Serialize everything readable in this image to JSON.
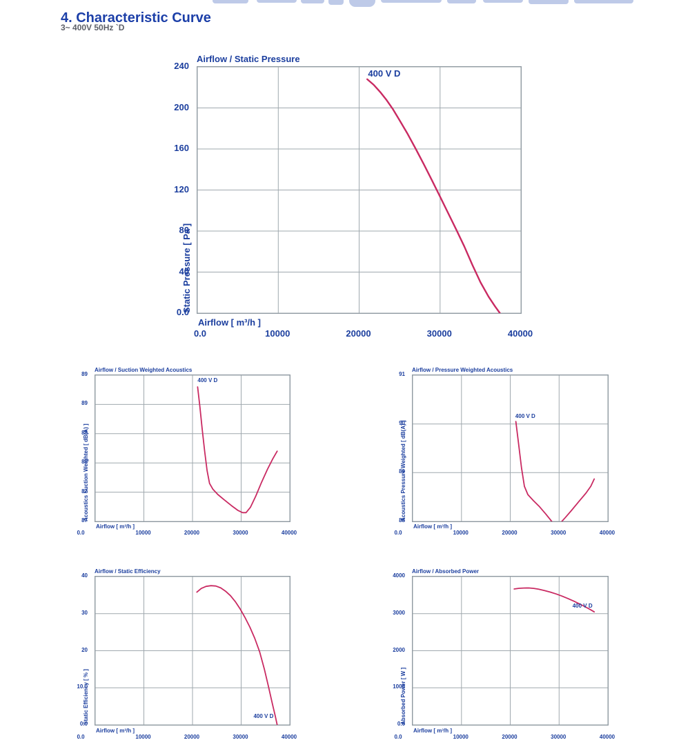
{
  "page": {
    "heading": "4.  Characteristic Curve",
    "subheading": "3~ 400V 50Hz `D"
  },
  "colors": {
    "chart_text_navy": "#1b3e9e",
    "heading_blue": "#1c3fa8",
    "subheading_gray": "#5c5f68",
    "curve_pink": "#c92a62",
    "grid_gray": "#9fa8ae",
    "frame_gray": "#8f99a1",
    "watermark_blue": "#bac7e7"
  },
  "chart_data": [
    {
      "type": "line",
      "title": "Airflow / Static Pressure",
      "xlabel": "Airflow [ m³/h ]",
      "ylabel": "Static Pressure [ Pa ]",
      "xlim": [
        0,
        40000
      ],
      "ylim": [
        0,
        240
      ],
      "grid": true,
      "x_ticks": [
        {
          "v": 0,
          "label": "0.0"
        },
        {
          "v": 10000,
          "label": "10000"
        },
        {
          "v": 20000,
          "label": "20000"
        },
        {
          "v": 30000,
          "label": "30000"
        },
        {
          "v": 40000,
          "label": "40000"
        }
      ],
      "y_ticks": [
        {
          "v": 240,
          "label": "240"
        },
        {
          "v": 200,
          "label": "200"
        },
        {
          "v": 160,
          "label": "160"
        },
        {
          "v": 120,
          "label": "120"
        },
        {
          "v": 80,
          "label": "80"
        },
        {
          "v": 40,
          "label": "40"
        },
        {
          "v": 0,
          "label": "0.0"
        }
      ],
      "series": [
        {
          "name": "400 V D",
          "points": [
            [
              21000,
              228
            ],
            [
              21800,
              222.5
            ],
            [
              22600,
              215.5
            ],
            [
              23400,
              207.5
            ],
            [
              24200,
              198.5
            ],
            [
              25000,
              188
            ],
            [
              26000,
              174.5
            ],
            [
              27000,
              160
            ],
            [
              28000,
              145
            ],
            [
              29000,
              129.5
            ],
            [
              30000,
              113.5
            ],
            [
              31000,
              97.5
            ],
            [
              32000,
              81.5
            ],
            [
              33000,
              65
            ],
            [
              34000,
              47
            ],
            [
              35000,
              30
            ],
            [
              36000,
              16
            ],
            [
              36800,
              6.5
            ],
            [
              37400,
              0
            ]
          ]
        }
      ],
      "series_label_pos": [
        21100,
        238.8
      ]
    },
    {
      "type": "line",
      "title": "Airflow / Suction Weighted Acoustics",
      "xlabel": "Airflow [ m³/h ]",
      "ylabel": "Acoustics Suction Weighted [ dB(A) ]",
      "xlim": [
        0,
        40000
      ],
      "ylim": [
        86.75,
        89.25
      ],
      "grid": true,
      "x_ticks": [
        {
          "v": 0,
          "label": "0.0"
        },
        {
          "v": 10000,
          "label": "10000"
        },
        {
          "v": 20000,
          "label": "20000"
        },
        {
          "v": 30000,
          "label": "30000"
        },
        {
          "v": 40000,
          "label": "40000"
        }
      ],
      "y_ticks": [
        {
          "v": 89.25,
          "label": "89"
        },
        {
          "v": 88.75,
          "label": "89"
        },
        {
          "v": 88.25,
          "label": "88"
        },
        {
          "v": 87.75,
          "label": "88"
        },
        {
          "v": 87.25,
          "label": "87"
        },
        {
          "v": 86.75,
          "label": "87"
        }
      ],
      "series": [
        {
          "name": "400 V D",
          "points": [
            [
              21050,
              89.05
            ],
            [
              21500,
              88.72
            ],
            [
              22000,
              88.32
            ],
            [
              22500,
              87.95
            ],
            [
              23000,
              87.62
            ],
            [
              23500,
              87.4
            ],
            [
              24200,
              87.3
            ],
            [
              25200,
              87.21
            ],
            [
              26500,
              87.12
            ],
            [
              28000,
              87.02
            ],
            [
              29300,
              86.94
            ],
            [
              30300,
              86.9
            ],
            [
              31000,
              86.9
            ],
            [
              31900,
              86.99
            ],
            [
              33000,
              87.18
            ],
            [
              34200,
              87.42
            ],
            [
              35400,
              87.64
            ],
            [
              36500,
              87.82
            ],
            [
              37400,
              87.95
            ]
          ]
        }
      ],
      "series_label_pos": [
        21050,
        89.21
      ]
    },
    {
      "type": "line",
      "title": "Airflow / Pressure Weighted Acoustics",
      "xlabel": "Airflow [ m³/h ]",
      "ylabel": "Acoustics Pressure Weighted [ dB(A) ]",
      "xlim": [
        0,
        40000
      ],
      "ylim": [
        88,
        91
      ],
      "grid": true,
      "x_ticks": [
        {
          "v": 0,
          "label": "0.0"
        },
        {
          "v": 10000,
          "label": "10000"
        },
        {
          "v": 20000,
          "label": "20000"
        },
        {
          "v": 30000,
          "label": "30000"
        },
        {
          "v": 40000,
          "label": "40000"
        }
      ],
      "y_ticks": [
        {
          "v": 91,
          "label": "91"
        },
        {
          "v": 90,
          "label": "90"
        },
        {
          "v": 89,
          "label": "89"
        },
        {
          "v": 88,
          "label": "88"
        }
      ],
      "series": [
        {
          "name": "400 V D",
          "points": [
            [
              21150,
              90.05
            ],
            [
              21700,
              89.6
            ],
            [
              22300,
              89.1
            ],
            [
              22900,
              88.72
            ],
            [
              23600,
              88.55
            ],
            [
              24700,
              88.43
            ],
            [
              26000,
              88.3
            ],
            [
              27300,
              88.15
            ],
            [
              28500,
              88.0
            ],
            [
              29300,
              87.92
            ],
            [
              30200,
              87.96
            ],
            [
              31300,
              88.08
            ],
            [
              32500,
              88.22
            ],
            [
              34000,
              88.4
            ],
            [
              35500,
              88.58
            ],
            [
              36500,
              88.72
            ],
            [
              37200,
              88.87
            ]
          ]
        }
      ],
      "series_label_pos": [
        21050,
        90.22
      ]
    },
    {
      "type": "line",
      "title": "Airflow / Static Efficiency",
      "xlabel": "Airflow [ m³/h ]",
      "ylabel": "Static Efficiency [ % ]",
      "xlim": [
        0,
        40000
      ],
      "ylim": [
        0,
        40
      ],
      "grid": true,
      "x_ticks": [
        {
          "v": 0,
          "label": "0.0"
        },
        {
          "v": 10000,
          "label": "10000"
        },
        {
          "v": 20000,
          "label": "20000"
        },
        {
          "v": 30000,
          "label": "30000"
        },
        {
          "v": 40000,
          "label": "40000"
        }
      ],
      "y_ticks": [
        {
          "v": 40,
          "label": "40"
        },
        {
          "v": 30,
          "label": "30"
        },
        {
          "v": 20,
          "label": "20"
        },
        {
          "v": 10,
          "label": "10.0"
        },
        {
          "v": 0,
          "label": "0.0"
        }
      ],
      "series": [
        {
          "name": "400 V D",
          "points": [
            [
              20900,
              35.8
            ],
            [
              21800,
              36.8
            ],
            [
              22800,
              37.35
            ],
            [
              23800,
              37.55
            ],
            [
              24800,
              37.45
            ],
            [
              25800,
              36.95
            ],
            [
              26800,
              36.05
            ],
            [
              27800,
              34.85
            ],
            [
              28800,
              33.25
            ],
            [
              29800,
              31.25
            ],
            [
              30800,
              28.95
            ],
            [
              31800,
              26.35
            ],
            [
              32800,
              23.35
            ],
            [
              33800,
              19.7
            ],
            [
              34800,
              14.9
            ],
            [
              35600,
              10.4
            ],
            [
              36400,
              5.8
            ],
            [
              37000,
              2.4
            ],
            [
              37400,
              0
            ]
          ]
        }
      ],
      "series_label_pos": [
        32550,
        3.2
      ]
    },
    {
      "type": "line",
      "title": "Airflow / Absorbed Power",
      "xlabel": "Airflow [ m³/h ]",
      "ylabel": "Absorbed Power [ W ]",
      "xlim": [
        0,
        40000
      ],
      "ylim": [
        0,
        4000
      ],
      "grid": true,
      "x_ticks": [
        {
          "v": 0,
          "label": "0.0"
        },
        {
          "v": 10000,
          "label": "10000"
        },
        {
          "v": 20000,
          "label": "20000"
        },
        {
          "v": 30000,
          "label": "30000"
        },
        {
          "v": 40000,
          "label": "40000"
        }
      ],
      "y_ticks": [
        {
          "v": 4000,
          "label": "4000"
        },
        {
          "v": 3000,
          "label": "3000"
        },
        {
          "v": 2000,
          "label": "2000"
        },
        {
          "v": 1000,
          "label": "1000"
        },
        {
          "v": 0,
          "label": "0.0"
        }
      ],
      "series": [
        {
          "name": "400 V D",
          "points": [
            [
              20800,
              3665
            ],
            [
              21800,
              3683
            ],
            [
              22800,
              3692
            ],
            [
              23800,
              3693
            ],
            [
              24800,
              3682
            ],
            [
              25800,
              3660
            ],
            [
              27000,
              3625
            ],
            [
              28200,
              3582
            ],
            [
              29400,
              3532
            ],
            [
              30600,
              3473
            ],
            [
              31800,
              3408
            ],
            [
              33000,
              3338
            ],
            [
              34200,
              3262
            ],
            [
              35400,
              3182
            ],
            [
              36400,
              3110
            ],
            [
              37200,
              3048
            ]
          ]
        }
      ],
      "series_label_pos": [
        32750,
        3285
      ]
    }
  ]
}
